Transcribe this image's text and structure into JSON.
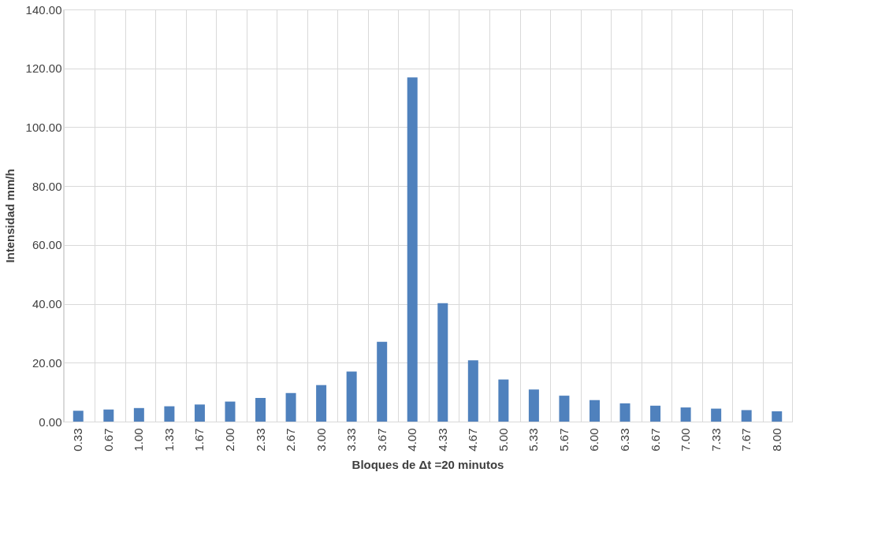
{
  "chart_data": {
    "type": "bar",
    "xlabel": "Bloques de Δt =20 minutos",
    "ylabel": "Intensidad mm/h",
    "categories": [
      "0.33",
      "0.67",
      "1.00",
      "1.33",
      "1.67",
      "2.00",
      "2.33",
      "2.67",
      "3.00",
      "3.33",
      "3.67",
      "4.00",
      "4.33",
      "4.67",
      "5.00",
      "5.33",
      "5.67",
      "6.00",
      "6.33",
      "6.67",
      "7.00",
      "7.33",
      "7.67",
      "8.00"
    ],
    "values": [
      3.7,
      4.1,
      4.6,
      5.2,
      5.8,
      6.8,
      8.0,
      9.7,
      12.4,
      17.0,
      27.1,
      116.9,
      40.2,
      20.8,
      14.3,
      10.9,
      8.8,
      7.3,
      6.2,
      5.4,
      4.8,
      4.4,
      3.9,
      3.5
    ],
    "color": "#4f81bd",
    "ylim": [
      0,
      140
    ],
    "yticks": [
      {
        "value": 0,
        "label": "0.00"
      },
      {
        "value": 20,
        "label": "20.00"
      },
      {
        "value": 40,
        "label": "40.00"
      },
      {
        "value": 60,
        "label": "60.00"
      },
      {
        "value": 80,
        "label": "80.00"
      },
      {
        "value": 100,
        "label": "100.00"
      },
      {
        "value": 120,
        "label": "120.00"
      },
      {
        "value": 140,
        "label": "140.00"
      }
    ],
    "grid": true
  }
}
